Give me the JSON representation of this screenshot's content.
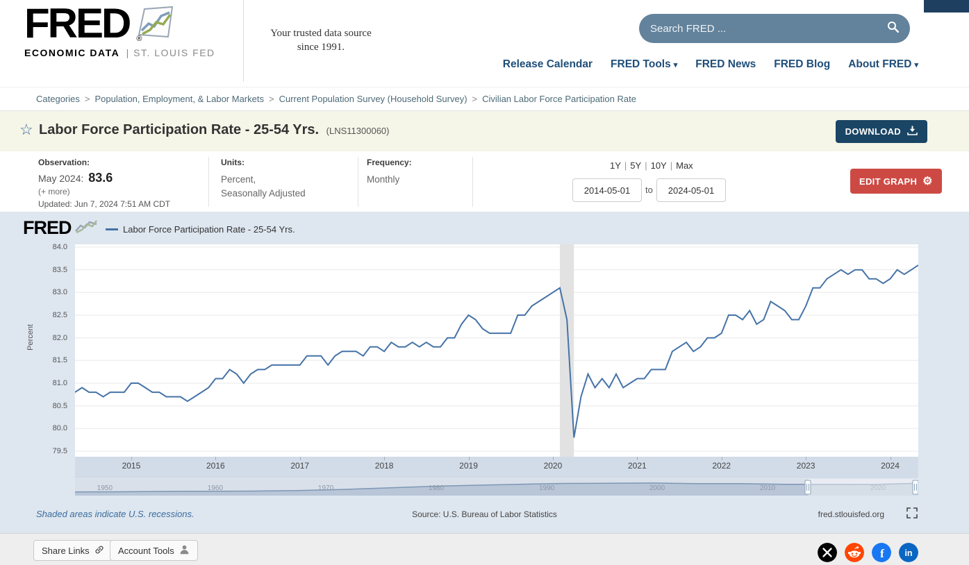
{
  "icons": {
    "chevron_down": "▾",
    "star": "☆",
    "gear": "⚙",
    "registered": "®"
  },
  "header": {
    "logo_text": "FRED",
    "logo_subtext_bold": "ECONOMIC DATA",
    "logo_subtext_gray": "|  ST. LOUIS FED",
    "tagline_line1": "Your trusted data source",
    "tagline_line2": "since 1991.",
    "search_placeholder": "Search FRED ...",
    "nav": [
      {
        "label": "Release Calendar"
      },
      {
        "label": "FRED Tools"
      },
      {
        "label": "FRED News"
      },
      {
        "label": "FRED Blog"
      },
      {
        "label": "About FRED"
      }
    ]
  },
  "breadcrumb": {
    "separator": ">",
    "items": [
      {
        "label": "Categories"
      },
      {
        "label": "Population, Employment, & Labor Markets"
      },
      {
        "label": "Current Population Survey (Household Survey)"
      },
      {
        "label": "Civilian Labor Force Participation Rate"
      }
    ]
  },
  "title_bar": {
    "title": "Labor Force Participation Rate - 25-54 Yrs.",
    "series_id": "(LNS11300060)",
    "download_label": "DOWNLOAD"
  },
  "meta": {
    "observation_label": "Observation:",
    "observation_date": "May 2024:",
    "observation_value": "83.6",
    "more_label": "(+ more)",
    "updated": "Updated: Jun 7, 2024 7:51 AM CDT",
    "units_label": "Units:",
    "units_line1": "Percent,",
    "units_line2": "Seasonally Adjusted",
    "frequency_label": "Frequency:",
    "frequency_value": "Monthly",
    "range_presets": [
      "1Y",
      "5Y",
      "10Y",
      "Max"
    ],
    "preset_separator": "|",
    "date_from": "2014-05-01",
    "date_to_separator": "to",
    "date_to": "2024-05-01",
    "edit_graph_label": "EDIT GRAPH"
  },
  "chart": {
    "watermark": "FRED",
    "legend_label": "Labor Force Participation Rate - 25-54 Yrs.",
    "y_axis_title": "Percent",
    "recession_note": "Shaded areas indicate U.S. recessions.",
    "source": "Source: U.S. Bureau of Labor Statistics",
    "site": "fred.stlouisfed.org",
    "slider_years": [
      "1950",
      "1960",
      "1970",
      "1980",
      "1990",
      "2000",
      "2010",
      "2020"
    ],
    "slider_domain_start": 1948,
    "slider_preview": [
      65.0,
      65.3,
      66.0,
      66.4,
      66.8,
      68.0,
      70.2,
      73.5,
      77.0,
      79.3,
      81.5,
      83.2,
      83.7,
      84.1,
      82.9,
      83.0,
      81.4,
      81.2,
      81.0,
      83.5
    ]
  },
  "chart_data": {
    "type": "line",
    "title": "Labor Force Participation Rate - 25-54 Yrs.",
    "ylabel": "Percent",
    "ylim": [
      79.5,
      84.0
    ],
    "y_ticks": [
      79.5,
      80.0,
      80.5,
      81.0,
      81.5,
      82.0,
      82.5,
      83.0,
      83.5,
      84.0
    ],
    "x_ticks": [
      "2015",
      "2016",
      "2017",
      "2018",
      "2019",
      "2020",
      "2021",
      "2022",
      "2023",
      "2024"
    ],
    "start": "2014-05",
    "end": "2024-05",
    "frequency": "monthly",
    "line_color": "#4573a7",
    "grid": true,
    "legend_position": "top-left",
    "recession_band": {
      "start": "2020-02",
      "end": "2020-04"
    },
    "values": [
      80.8,
      80.9,
      80.8,
      80.8,
      80.7,
      80.8,
      80.8,
      80.8,
      81.0,
      81.0,
      80.9,
      80.8,
      80.8,
      80.7,
      80.7,
      80.7,
      80.6,
      80.7,
      80.8,
      80.9,
      81.1,
      81.1,
      81.3,
      81.2,
      81.0,
      81.2,
      81.3,
      81.3,
      81.4,
      81.4,
      81.4,
      81.4,
      81.4,
      81.6,
      81.6,
      81.6,
      81.4,
      81.6,
      81.7,
      81.7,
      81.7,
      81.6,
      81.8,
      81.8,
      81.7,
      81.9,
      81.8,
      81.8,
      81.9,
      81.8,
      81.9,
      81.8,
      81.8,
      82.0,
      82.0,
      82.3,
      82.5,
      82.4,
      82.2,
      82.1,
      82.1,
      82.1,
      82.1,
      82.5,
      82.5,
      82.7,
      82.8,
      82.9,
      83.0,
      83.1,
      82.4,
      79.8,
      80.7,
      81.2,
      80.9,
      81.1,
      80.9,
      81.2,
      80.9,
      81.0,
      81.1,
      81.1,
      81.3,
      81.3,
      81.3,
      81.7,
      81.8,
      81.9,
      81.7,
      81.8,
      82.0,
      82.0,
      82.1,
      82.5,
      82.5,
      82.4,
      82.6,
      82.3,
      82.4,
      82.8,
      82.7,
      82.6,
      82.4,
      82.4,
      82.7,
      83.1,
      83.1,
      83.3,
      83.4,
      83.5,
      83.4,
      83.5,
      83.5,
      83.3,
      83.3,
      83.2,
      83.3,
      83.5,
      83.4,
      83.5,
      83.6
    ]
  },
  "footer": {
    "share_links_label": "Share Links",
    "account_tools_label": "Account Tools"
  }
}
